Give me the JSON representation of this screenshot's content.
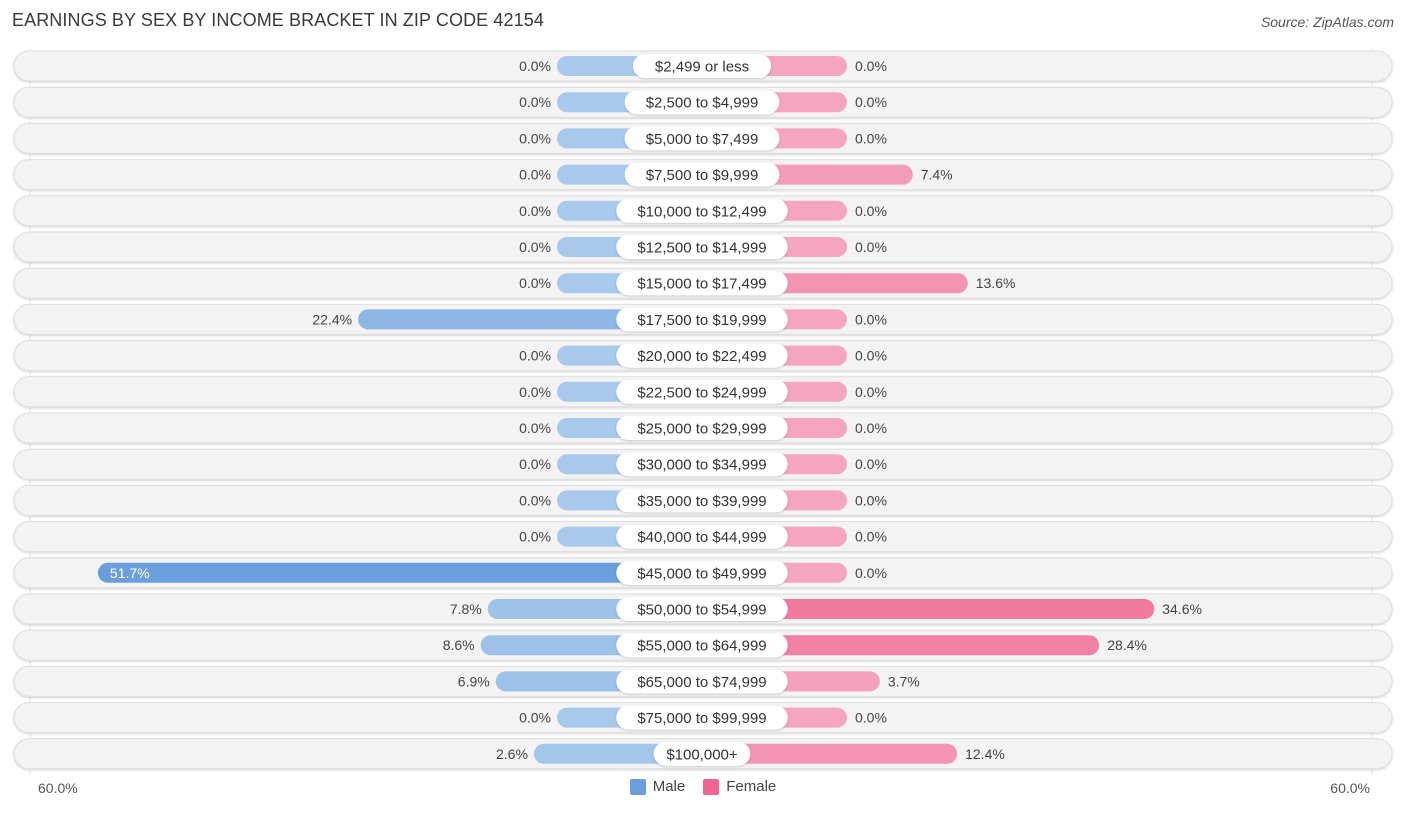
{
  "title": "EARNINGS BY SEX BY INCOME BRACKET IN ZIP CODE 42154",
  "source": "Source: ZipAtlas.com",
  "colors": {
    "male": "#6a9fdb",
    "male_light": "#a8c8ec",
    "female": "#f06592",
    "female_light": "#f5a5c0",
    "row_bg": "#f3f3f3",
    "row_border": "#dddddd"
  },
  "chart_data": {
    "type": "bar",
    "orientation": "horizontal-diverging",
    "title": "EARNINGS BY SEX BY INCOME BRACKET IN ZIP CODE 42154",
    "categories": [
      "$2,499 or less",
      "$2,500 to $4,999",
      "$5,000 to $7,499",
      "$7,500 to $9,999",
      "$10,000 to $12,499",
      "$12,500 to $14,999",
      "$15,000 to $17,499",
      "$17,500 to $19,999",
      "$20,000 to $22,499",
      "$22,500 to $24,999",
      "$25,000 to $29,999",
      "$30,000 to $34,999",
      "$35,000 to $39,999",
      "$40,000 to $44,999",
      "$45,000 to $49,999",
      "$50,000 to $54,999",
      "$55,000 to $64,999",
      "$65,000 to $74,999",
      "$75,000 to $99,999",
      "$100,000+"
    ],
    "series": [
      {
        "name": "Male",
        "values": [
          0.0,
          0.0,
          0.0,
          0.0,
          0.0,
          0.0,
          0.0,
          22.4,
          0.0,
          0.0,
          0.0,
          0.0,
          0.0,
          0.0,
          51.7,
          7.8,
          8.6,
          6.9,
          0.0,
          2.6
        ],
        "labels": [
          "0.0%",
          "0.0%",
          "0.0%",
          "0.0%",
          "0.0%",
          "0.0%",
          "0.0%",
          "22.4%",
          "0.0%",
          "0.0%",
          "0.0%",
          "0.0%",
          "0.0%",
          "0.0%",
          "51.7%",
          "7.8%",
          "8.6%",
          "6.9%",
          "0.0%",
          "2.6%"
        ]
      },
      {
        "name": "Female",
        "values": [
          0.0,
          0.0,
          0.0,
          7.4,
          0.0,
          0.0,
          13.6,
          0.0,
          0.0,
          0.0,
          0.0,
          0.0,
          0.0,
          0.0,
          0.0,
          34.6,
          28.4,
          3.7,
          0.0,
          12.4
        ],
        "labels": [
          "0.0%",
          "0.0%",
          "0.0%",
          "7.4%",
          "0.0%",
          "0.0%",
          "13.6%",
          "0.0%",
          "0.0%",
          "0.0%",
          "0.0%",
          "0.0%",
          "0.0%",
          "0.0%",
          "0.0%",
          "34.6%",
          "28.4%",
          "3.7%",
          "0.0%",
          "12.4%"
        ]
      }
    ],
    "xlim": [
      -60,
      60
    ],
    "axis_labels": {
      "left": "60.0%",
      "right": "60.0%"
    },
    "legend": {
      "position": "bottom-center",
      "entries": [
        "Male",
        "Female"
      ]
    },
    "grid": false
  }
}
